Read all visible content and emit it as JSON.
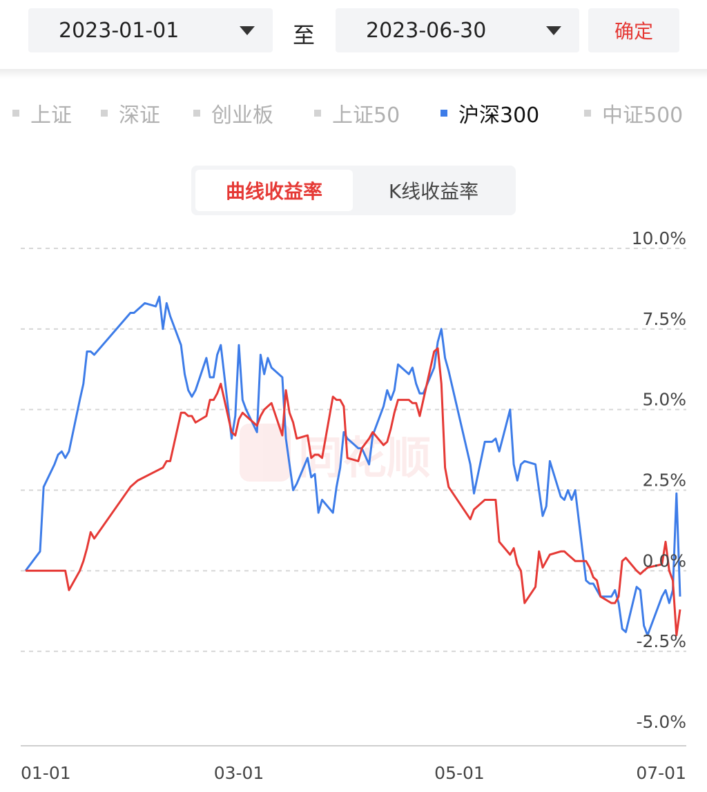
{
  "date_range": {
    "start": "2023-01-01",
    "separator": "至",
    "end": "2023-06-30",
    "confirm_label": "确定"
  },
  "index_tabs": [
    {
      "label": "上证",
      "active": false
    },
    {
      "label": "深证",
      "active": false
    },
    {
      "label": "创业板",
      "active": false
    },
    {
      "label": "上证50",
      "active": false
    },
    {
      "label": "沪深300",
      "active": true
    },
    {
      "label": "中证500",
      "active": false
    }
  ],
  "mode_tabs": [
    {
      "label": "曲线收益率",
      "active": true
    },
    {
      "label": "K线收益率",
      "active": false
    }
  ],
  "watermark": "同花顺",
  "chart_data": {
    "type": "line",
    "title": "",
    "xlabel": "",
    "ylabel": "",
    "x_range": [
      "2023-01-01",
      "2023-07-01"
    ],
    "x_ticks": [
      "01-01",
      "03-01",
      "05-01",
      "07-01"
    ],
    "ylim": [
      -5.0,
      10.0
    ],
    "y_ticks": [
      "10.0%",
      "7.5%",
      "5.0%",
      "2.5%",
      "0.0%",
      "-2.5%",
      "-5.0%"
    ],
    "grid": "horizontal-dashed",
    "series": [
      {
        "color": "#3d7ce8",
        "points": [
          [
            "01-01",
            0.0
          ],
          [
            "01-05",
            0.6
          ],
          [
            "01-06",
            2.6
          ],
          [
            "01-09",
            3.3
          ],
          [
            "01-10",
            3.6
          ],
          [
            "01-11",
            3.7
          ],
          [
            "01-12",
            3.5
          ],
          [
            "01-13",
            3.7
          ],
          [
            "01-16",
            5.3
          ],
          [
            "01-17",
            5.8
          ],
          [
            "01-18",
            6.8
          ],
          [
            "01-19",
            6.8
          ],
          [
            "01-20",
            6.7
          ],
          [
            "01-30",
            8.0
          ],
          [
            "01-31",
            8.0
          ],
          [
            "02-01",
            8.1
          ],
          [
            "02-02",
            8.2
          ],
          [
            "02-03",
            8.3
          ],
          [
            "02-06",
            8.2
          ],
          [
            "02-07",
            8.5
          ],
          [
            "02-08",
            7.5
          ],
          [
            "02-09",
            8.3
          ],
          [
            "02-10",
            7.9
          ],
          [
            "02-13",
            7.0
          ],
          [
            "02-14",
            6.1
          ],
          [
            "02-15",
            5.6
          ],
          [
            "02-16",
            5.4
          ],
          [
            "02-17",
            5.6
          ],
          [
            "02-20",
            6.6
          ],
          [
            "02-21",
            6.0
          ],
          [
            "02-22",
            6.0
          ],
          [
            "02-23",
            6.7
          ],
          [
            "02-24",
            7.0
          ],
          [
            "02-27",
            4.1
          ],
          [
            "02-28",
            4.8
          ],
          [
            "03-01",
            7.0
          ],
          [
            "03-02",
            5.3
          ],
          [
            "03-03",
            5.0
          ],
          [
            "03-06",
            4.3
          ],
          [
            "03-07",
            6.7
          ],
          [
            "03-08",
            6.1
          ],
          [
            "03-09",
            6.6
          ],
          [
            "03-10",
            6.3
          ],
          [
            "03-13",
            6.0
          ],
          [
            "03-14",
            4.1
          ],
          [
            "03-15",
            3.3
          ],
          [
            "03-16",
            2.5
          ],
          [
            "03-17",
            2.7
          ],
          [
            "03-20",
            3.5
          ],
          [
            "03-21",
            2.9
          ],
          [
            "03-22",
            3.0
          ],
          [
            "03-23",
            1.8
          ],
          [
            "03-24",
            2.2
          ],
          [
            "03-27",
            1.8
          ],
          [
            "03-28",
            2.6
          ],
          [
            "03-29",
            3.2
          ],
          [
            "03-30",
            4.3
          ],
          [
            "03-31",
            4.1
          ],
          [
            "04-03",
            3.8
          ],
          [
            "04-04",
            3.8
          ],
          [
            "04-06",
            3.3
          ],
          [
            "04-07",
            4.2
          ],
          [
            "04-10",
            5.1
          ],
          [
            "04-11",
            5.6
          ],
          [
            "04-12",
            5.3
          ],
          [
            "04-13",
            5.6
          ],
          [
            "04-14",
            6.4
          ],
          [
            "04-17",
            6.1
          ],
          [
            "04-18",
            6.3
          ],
          [
            "04-19",
            5.8
          ],
          [
            "04-20",
            5.5
          ],
          [
            "04-21",
            5.5
          ],
          [
            "04-24",
            6.3
          ],
          [
            "04-25",
            7.1
          ],
          [
            "04-26",
            7.5
          ],
          [
            "04-27",
            6.6
          ],
          [
            "04-28",
            6.2
          ],
          [
            "05-04",
            3.3
          ],
          [
            "05-05",
            2.4
          ],
          [
            "05-08",
            4.0
          ],
          [
            "05-09",
            4.0
          ],
          [
            "05-10",
            4.0
          ],
          [
            "05-11",
            4.1
          ],
          [
            "05-12",
            3.7
          ],
          [
            "05-15",
            5.0
          ],
          [
            "05-16",
            3.3
          ],
          [
            "05-17",
            2.8
          ],
          [
            "05-18",
            3.3
          ],
          [
            "05-19",
            3.4
          ],
          [
            "05-22",
            3.3
          ],
          [
            "05-23",
            2.5
          ],
          [
            "05-24",
            1.7
          ],
          [
            "05-25",
            2.0
          ],
          [
            "05-26",
            3.4
          ],
          [
            "05-29",
            2.3
          ],
          [
            "05-30",
            2.2
          ],
          [
            "05-31",
            2.5
          ],
          [
            "06-01",
            2.2
          ],
          [
            "06-02",
            2.5
          ],
          [
            "06-05",
            -0.3
          ],
          [
            "06-06",
            -0.4
          ],
          [
            "06-07",
            -0.4
          ],
          [
            "06-08",
            -0.6
          ],
          [
            "06-09",
            -0.8
          ],
          [
            "06-12",
            -0.8
          ],
          [
            "06-13",
            -0.6
          ],
          [
            "06-14",
            -1.0
          ],
          [
            "06-15",
            -1.8
          ],
          [
            "06-16",
            -1.9
          ],
          [
            "06-19",
            -0.5
          ],
          [
            "06-20",
            -0.6
          ],
          [
            "06-21",
            -1.7
          ],
          [
            "06-22",
            -2.0
          ],
          [
            "06-23",
            -1.7
          ],
          [
            "06-26",
            -0.8
          ],
          [
            "06-27",
            -0.6
          ],
          [
            "06-28",
            -1.0
          ],
          [
            "06-29",
            -0.6
          ],
          [
            "06-30",
            2.4
          ],
          [
            "07-01",
            -0.8
          ]
        ]
      },
      {
        "color": "#e53935",
        "points": [
          [
            "01-01",
            0.0
          ],
          [
            "01-06",
            0.0
          ],
          [
            "01-09",
            0.0
          ],
          [
            "01-10",
            0.0
          ],
          [
            "01-12",
            0.0
          ],
          [
            "01-13",
            -0.6
          ],
          [
            "01-16",
            0.0
          ],
          [
            "01-17",
            0.3
          ],
          [
            "01-18",
            0.7
          ],
          [
            "01-19",
            1.2
          ],
          [
            "01-20",
            1.0
          ],
          [
            "01-30",
            2.6
          ],
          [
            "02-01",
            2.8
          ],
          [
            "02-08",
            3.2
          ],
          [
            "02-09",
            3.4
          ],
          [
            "02-10",
            3.4
          ],
          [
            "02-13",
            4.9
          ],
          [
            "02-14",
            4.9
          ],
          [
            "02-15",
            4.8
          ],
          [
            "02-16",
            4.8
          ],
          [
            "02-17",
            4.6
          ],
          [
            "02-20",
            4.8
          ],
          [
            "02-21",
            5.3
          ],
          [
            "02-22",
            5.3
          ],
          [
            "02-23",
            5.5
          ],
          [
            "02-24",
            5.8
          ],
          [
            "02-27",
            4.3
          ],
          [
            "02-28",
            4.2
          ],
          [
            "03-01",
            4.7
          ],
          [
            "03-02",
            4.9
          ],
          [
            "03-03",
            4.8
          ],
          [
            "03-06",
            4.5
          ],
          [
            "03-07",
            4.8
          ],
          [
            "03-08",
            5.0
          ],
          [
            "03-09",
            5.1
          ],
          [
            "03-10",
            5.2
          ],
          [
            "03-13",
            4.2
          ],
          [
            "03-14",
            5.6
          ],
          [
            "03-15",
            4.9
          ],
          [
            "03-16",
            4.6
          ],
          [
            "03-17",
            4.1
          ],
          [
            "03-20",
            4.2
          ],
          [
            "03-21",
            3.5
          ],
          [
            "03-22",
            3.6
          ],
          [
            "03-23",
            3.6
          ],
          [
            "03-24",
            3.5
          ],
          [
            "03-27",
            5.4
          ],
          [
            "03-28",
            5.3
          ],
          [
            "03-29",
            5.3
          ],
          [
            "03-30",
            5.1
          ],
          [
            "03-31",
            3.5
          ],
          [
            "04-03",
            3.4
          ],
          [
            "04-04",
            3.8
          ],
          [
            "04-06",
            4.1
          ],
          [
            "04-07",
            4.3
          ],
          [
            "04-10",
            3.9
          ],
          [
            "04-11",
            4.0
          ],
          [
            "04-12",
            4.4
          ],
          [
            "04-13",
            4.9
          ],
          [
            "04-14",
            5.3
          ],
          [
            "04-17",
            5.3
          ],
          [
            "04-18",
            5.2
          ],
          [
            "04-19",
            5.2
          ],
          [
            "04-20",
            4.8
          ],
          [
            "04-24",
            6.8
          ],
          [
            "04-25",
            6.9
          ],
          [
            "04-26",
            5.8
          ],
          [
            "04-27",
            3.2
          ],
          [
            "04-28",
            2.6
          ],
          [
            "05-04",
            1.6
          ],
          [
            "05-05",
            1.9
          ],
          [
            "05-08",
            2.2
          ],
          [
            "05-09",
            2.2
          ],
          [
            "05-10",
            2.2
          ],
          [
            "05-11",
            2.2
          ],
          [
            "05-12",
            0.9
          ],
          [
            "05-15",
            0.5
          ],
          [
            "05-16",
            0.7
          ],
          [
            "05-17",
            0.2
          ],
          [
            "05-18",
            0.0
          ],
          [
            "05-19",
            -1.0
          ],
          [
            "05-22",
            -0.5
          ],
          [
            "05-23",
            0.6
          ],
          [
            "05-24",
            0.1
          ],
          [
            "05-25",
            0.3
          ],
          [
            "05-26",
            0.5
          ],
          [
            "05-29",
            0.6
          ],
          [
            "05-30",
            0.6
          ],
          [
            "05-31",
            0.5
          ],
          [
            "06-01",
            0.4
          ],
          [
            "06-02",
            0.3
          ],
          [
            "06-05",
            0.3
          ],
          [
            "06-06",
            0.1
          ],
          [
            "06-07",
            -0.2
          ],
          [
            "06-08",
            -0.3
          ],
          [
            "06-09",
            -0.8
          ],
          [
            "06-12",
            -1.0
          ],
          [
            "06-13",
            -1.0
          ],
          [
            "06-14",
            -0.8
          ],
          [
            "06-15",
            0.3
          ],
          [
            "06-16",
            0.4
          ],
          [
            "06-19",
            0.0
          ],
          [
            "06-20",
            -0.1
          ],
          [
            "06-21",
            0.0
          ],
          [
            "06-22",
            0.1
          ],
          [
            "06-26",
            0.2
          ],
          [
            "06-27",
            0.9
          ],
          [
            "06-28",
            0.0
          ],
          [
            "06-29",
            -0.3
          ],
          [
            "06-30",
            -2.0
          ],
          [
            "07-01",
            -1.2
          ]
        ]
      }
    ]
  }
}
